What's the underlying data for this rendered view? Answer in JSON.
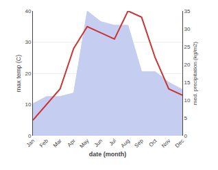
{
  "chart_data": {
    "type": "line",
    "xlabel": "date (month)",
    "ylabel": "max temp (C)",
    "y2label": "med. precipitation (kg/m2)",
    "categories": [
      "Jan",
      "Feb",
      "Mar",
      "Apr",
      "May",
      "Jun",
      "Jul",
      "Aug",
      "Sep",
      "Oct",
      "Nov",
      "Dec"
    ],
    "series": [
      {
        "type": "area",
        "axis": "y2",
        "color": "#c5cef0",
        "values": [
          9,
          11,
          11,
          12,
          35,
          32,
          31,
          31,
          18,
          18,
          15,
          13
        ]
      },
      {
        "type": "line",
        "color": "#cc3333",
        "values": [
          5,
          10,
          15,
          28,
          35,
          33,
          31,
          40,
          38,
          25,
          15,
          13
        ]
      }
    ],
    "ylim": [
      0,
      40
    ],
    "yticks": [
      0,
      10,
      20,
      30,
      40
    ],
    "y2lim": [
      0,
      35
    ],
    "y2ticks": [
      0,
      5,
      10,
      15,
      20,
      25,
      30,
      35
    ],
    "grid": true
  }
}
